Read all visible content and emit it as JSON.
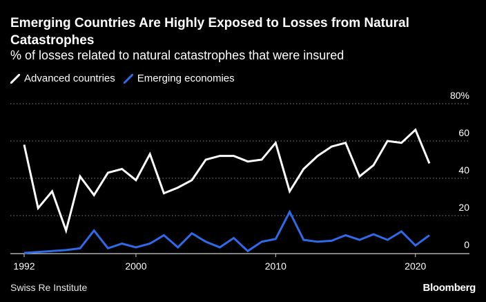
{
  "header": {
    "title": "Emerging Countries Are Highly Exposed to Losses from Natural Catastrophes",
    "subtitle": "% of losses related to natural catastrophes that were insured"
  },
  "footer": {
    "source": "Swiss Re Institute",
    "brand": "Bloomberg"
  },
  "colors": {
    "background": "#000000",
    "advanced": "#ffffff",
    "emerging": "#2f6ae8",
    "grid": "#8a8a8a"
  },
  "chart_data": {
    "type": "line",
    "title": "Emerging Countries Are Highly Exposed to Losses from Natural Catastrophes",
    "subtitle": "% of losses related to natural catastrophes that were insured",
    "x": [
      1992,
      1993,
      1994,
      1995,
      1996,
      1997,
      1998,
      1999,
      2000,
      2001,
      2002,
      2003,
      2004,
      2005,
      2006,
      2007,
      2008,
      2009,
      2010,
      2011,
      2012,
      2013,
      2014,
      2015,
      2016,
      2017,
      2018,
      2019,
      2020,
      2021
    ],
    "series": [
      {
        "name": "Advanced countries",
        "color": "#ffffff",
        "values": [
          58,
          24,
          33,
          12,
          41,
          31,
          43,
          45,
          39,
          53,
          32,
          35,
          39,
          50,
          52,
          52,
          49,
          50,
          59,
          33,
          45,
          52,
          57,
          59,
          41,
          47,
          60,
          59,
          66,
          48
        ]
      },
      {
        "name": "Emerging economies",
        "color": "#2f6ae8",
        "values": [
          0,
          0.5,
          1,
          1.5,
          2.5,
          12,
          2.5,
          5,
          3,
          5,
          9.5,
          3,
          10.5,
          6,
          3,
          8,
          1,
          6,
          7.5,
          22,
          7,
          6,
          6.5,
          9.5,
          7,
          10,
          7,
          11.5,
          4,
          9.5
        ]
      }
    ],
    "xticks": [
      "1992",
      "2000",
      "2010",
      "2020"
    ],
    "yticks": [
      "0",
      "20",
      "40",
      "60",
      "80%"
    ],
    "xlim": [
      1992,
      2021
    ],
    "ylim": [
      0,
      80
    ],
    "grid": "horizontal dotted",
    "legend": "top-left"
  }
}
